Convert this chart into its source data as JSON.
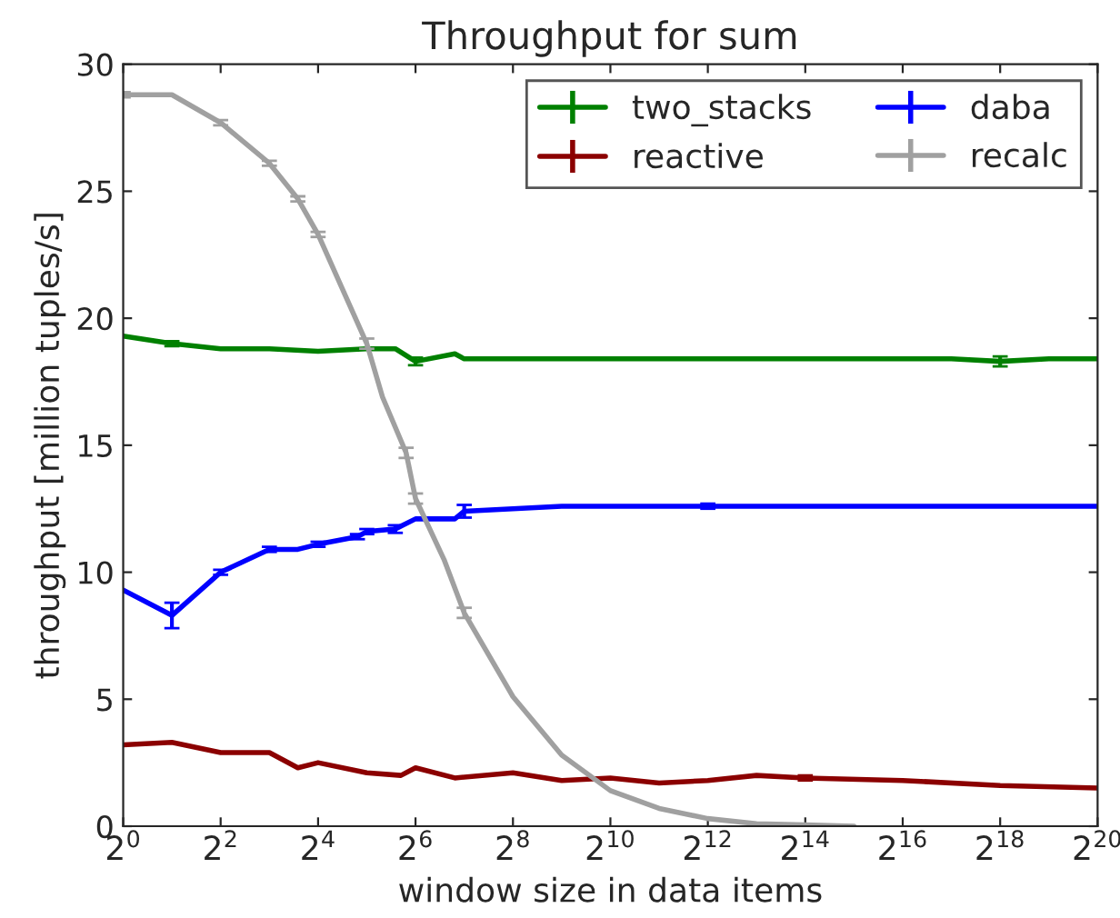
{
  "chart_data": {
    "type": "line",
    "title": "Throughput for sum",
    "xlabel": "window size in data items",
    "ylabel": "throughput [million tuples/s]",
    "log": "x",
    "xlim": [
      1,
      1048576
    ],
    "ylim": [
      0,
      30
    ],
    "yticks": [
      0,
      5,
      10,
      15,
      20,
      25,
      30
    ],
    "xticks": [
      {
        "value": 1,
        "label": "2$^{0}$"
      },
      {
        "value": 4,
        "label": "2$^{2}$"
      },
      {
        "value": 16,
        "label": "2$^{4}$"
      },
      {
        "value": 64,
        "label": "2$^{6}$"
      },
      {
        "value": 256,
        "label": "2$^{8}$"
      },
      {
        "value": 1024,
        "label": "2$^{10}$"
      },
      {
        "value": 4096,
        "label": "2$^{12}$"
      },
      {
        "value": 16384,
        "label": "2$^{14}$"
      },
      {
        "value": 65536,
        "label": "2$^{16}$"
      },
      {
        "value": 262144,
        "label": "2$^{18}$"
      },
      {
        "value": 1048576,
        "label": "2$^{20}$"
      }
    ],
    "legend": "top right",
    "grid": false,
    "series": [
      {
        "name": "two_stacks",
        "color": "#008000",
        "x": [
          1,
          2,
          4,
          8,
          16,
          32,
          48,
          64,
          112,
          128,
          256,
          512,
          1024,
          2048,
          4096,
          8192,
          16384,
          32768,
          65536,
          131072,
          262144,
          524288,
          1048576
        ],
        "values": [
          19.3,
          19.0,
          18.8,
          18.8,
          18.7,
          18.8,
          18.8,
          18.3,
          18.6,
          18.4,
          18.4,
          18.4,
          18.4,
          18.4,
          18.4,
          18.4,
          18.4,
          18.4,
          18.4,
          18.4,
          18.3,
          18.4,
          18.4
        ],
        "errors": [
          null,
          0.1,
          null,
          null,
          null,
          null,
          null,
          0.15,
          null,
          null,
          null,
          null,
          null,
          null,
          null,
          null,
          null,
          null,
          null,
          null,
          0.2,
          null,
          null
        ]
      },
      {
        "name": "reactive",
        "color": "#8b0000",
        "x": [
          1,
          2,
          4,
          8,
          12,
          16,
          32,
          52,
          64,
          112,
          256,
          512,
          1024,
          2048,
          4096,
          8192,
          16384,
          65536,
          262144,
          1048576
        ],
        "values": [
          3.2,
          3.3,
          2.9,
          2.9,
          2.3,
          2.5,
          2.1,
          2.0,
          2.3,
          1.9,
          2.1,
          1.8,
          1.9,
          1.7,
          1.8,
          2.0,
          1.9,
          1.8,
          1.6,
          1.5
        ],
        "errors": [
          null,
          null,
          null,
          null,
          null,
          null,
          null,
          null,
          null,
          null,
          null,
          null,
          null,
          null,
          null,
          null,
          0.1,
          null,
          null,
          null
        ]
      },
      {
        "name": "daba",
        "color": "#0000ff",
        "x": [
          1,
          2,
          4,
          8,
          12,
          16,
          28,
          32,
          48,
          64,
          112,
          128,
          256,
          512,
          1024,
          2048,
          4096,
          8192,
          16384,
          65536,
          262144,
          1048576
        ],
        "values": [
          9.3,
          8.3,
          10.0,
          10.9,
          10.9,
          11.1,
          11.4,
          11.6,
          11.7,
          12.1,
          12.1,
          12.4,
          12.5,
          12.6,
          12.6,
          12.6,
          12.6,
          12.6,
          12.6,
          12.6,
          12.6,
          12.6
        ],
        "errors": [
          null,
          0.5,
          0.1,
          0.1,
          null,
          0.1,
          0.1,
          0.1,
          0.15,
          null,
          null,
          0.25,
          null,
          null,
          null,
          null,
          0.1,
          null,
          null,
          null,
          null,
          null
        ]
      },
      {
        "name": "recalc",
        "color": "#a0a0a0",
        "x": [
          1,
          2,
          4,
          8,
          12,
          16,
          32,
          40,
          56,
          64,
          96,
          128,
          256,
          512,
          1024,
          2048,
          4096,
          8192,
          16384,
          32768
        ],
        "values": [
          28.8,
          28.8,
          27.7,
          26.1,
          24.7,
          23.3,
          19.0,
          16.9,
          14.7,
          12.9,
          10.5,
          8.4,
          5.1,
          2.8,
          1.4,
          0.7,
          0.3,
          0.1,
          0.05,
          0.0
        ],
        "errors": [
          0.1,
          null,
          0.1,
          0.1,
          0.1,
          0.1,
          0.2,
          null,
          0.2,
          0.2,
          null,
          0.2,
          null,
          null,
          null,
          null,
          null,
          null,
          null,
          null
        ]
      }
    ]
  }
}
